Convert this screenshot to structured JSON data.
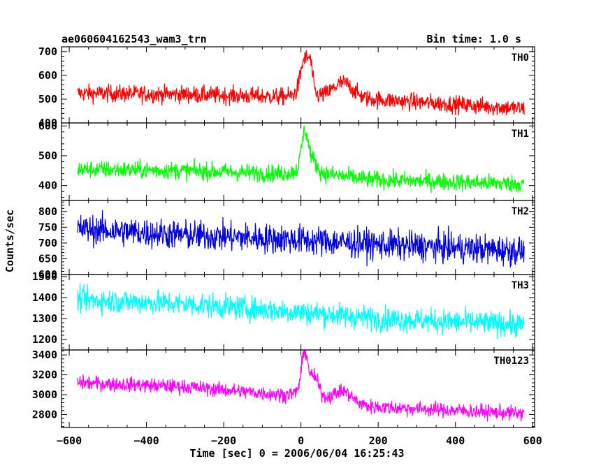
{
  "header": {
    "title": "ae060604162543_wam3_trn",
    "bin_time": "Bin time: 1.0 s"
  },
  "chart_data": {
    "type": "line",
    "xlabel": "Time [sec] 0 = 2006/06/04 16:25:43",
    "ylabel": "Counts/sec",
    "xlim": [
      -620,
      605
    ],
    "x_ticks": [
      -600,
      -400,
      -200,
      0,
      200,
      400,
      600
    ],
    "x_tick_labels": [
      "−600",
      "−400",
      "−200",
      "0",
      "200",
      "400",
      "600"
    ],
    "x_range_data": [
      -578,
      578
    ],
    "panels": [
      {
        "name": "TH0",
        "color": "#ff0000",
        "ylim": [
          400,
          720
        ],
        "y_ticks": [
          400,
          500,
          600,
          700
        ],
        "baseline": [
          [
            -578,
            525
          ],
          [
            -300,
            520
          ],
          [
            -50,
            510
          ],
          [
            0,
            520
          ],
          [
            180,
            500
          ],
          [
            578,
            460
          ]
        ],
        "noise": 35,
        "bursts": [
          [
            10,
            150,
            15
          ],
          [
            25,
            90,
            8
          ],
          [
            110,
            60,
            35
          ]
        ]
      },
      {
        "name": "TH1",
        "color": "#00ff00",
        "ylim": [
          350,
          610
        ],
        "y_ticks": [
          400,
          500,
          600
        ],
        "baseline": [
          [
            -578,
            455
          ],
          [
            -300,
            450
          ],
          [
            -50,
            440
          ],
          [
            0,
            450
          ],
          [
            180,
            420
          ],
          [
            578,
            405
          ]
        ],
        "noise": 28,
        "bursts": [
          [
            10,
            130,
            12
          ],
          [
            30,
            40,
            15
          ]
        ]
      },
      {
        "name": "TH2",
        "color": "#0000dd",
        "ylim": [
          600,
          835
        ],
        "y_ticks": [
          600,
          650,
          700,
          750,
          800
        ],
        "baseline": [
          [
            -578,
            745
          ],
          [
            -300,
            725
          ],
          [
            0,
            710
          ],
          [
            200,
            695
          ],
          [
            578,
            675
          ]
        ],
        "noise": 45,
        "bursts": []
      },
      {
        "name": "TH3",
        "color": "#00ffff",
        "ylim": [
          1150,
          1510
        ],
        "y_ticks": [
          1200,
          1300,
          1400,
          1500
        ],
        "baseline": [
          [
            -578,
            1390
          ],
          [
            -300,
            1370
          ],
          [
            0,
            1330
          ],
          [
            200,
            1300
          ],
          [
            578,
            1270
          ]
        ],
        "noise": 55,
        "bursts": []
      },
      {
        "name": "TH0123",
        "color": "#ff00ff",
        "ylim": [
          2670,
          3450
        ],
        "y_ticks": [
          2800,
          3000,
          3200,
          3400
        ],
        "baseline": [
          [
            -578,
            3120
          ],
          [
            -300,
            3080
          ],
          [
            -50,
            3000
          ],
          [
            0,
            3020
          ],
          [
            180,
            2880
          ],
          [
            578,
            2810
          ]
        ],
        "noise": 70,
        "bursts": [
          [
            10,
            420,
            12
          ],
          [
            35,
            180,
            15
          ],
          [
            110,
            100,
            30
          ]
        ]
      }
    ]
  }
}
